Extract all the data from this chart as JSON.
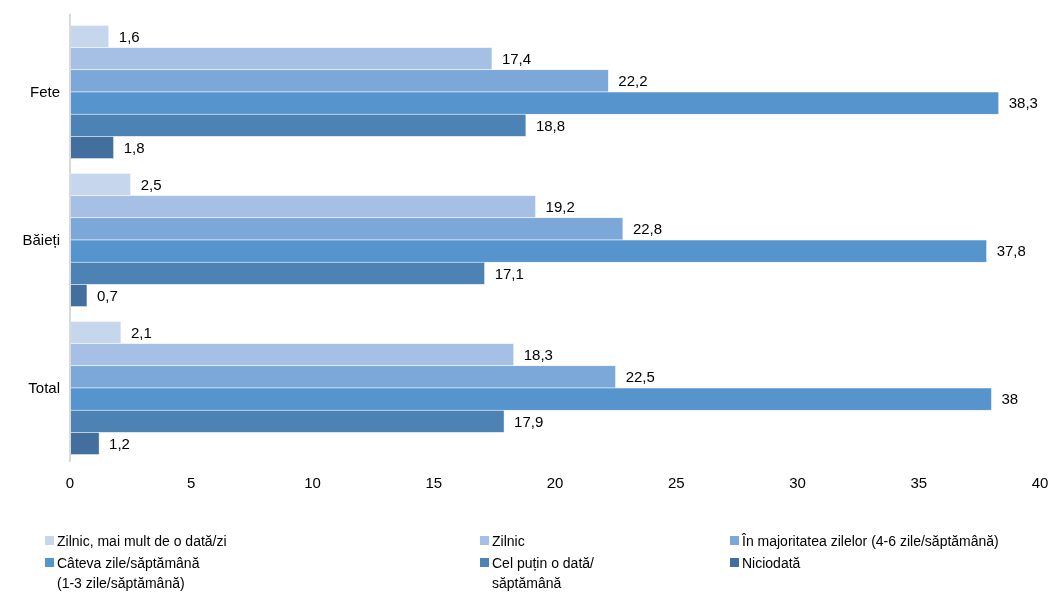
{
  "chart_data": {
    "type": "bar",
    "orientation": "horizontal",
    "categories": [
      "Fete",
      "Băieți",
      "Total"
    ],
    "series": [
      {
        "name": "Zilnic, mai mult de o dată/zi",
        "color": "#c6d6ec",
        "values": [
          1.6,
          2.5,
          2.1
        ],
        "value_labels": [
          "1,6",
          "2,5",
          "2,1"
        ]
      },
      {
        "name": "Zilnic",
        "color": "#a5c0e4",
        "values": [
          17.4,
          19.2,
          18.3
        ],
        "value_labels": [
          "17,4",
          "19,2",
          "18,3"
        ]
      },
      {
        "name": "În majoritatea zilelor (4-6 zile/săptămână)",
        "color": "#7ba8d9",
        "values": [
          22.2,
          22.8,
          22.5
        ],
        "value_labels": [
          "22,2",
          "22,8",
          "22,5"
        ]
      },
      {
        "name": "Câteva zile/săptămână (1-3 zile/săptămână)",
        "color": "#5594cd",
        "values": [
          38.3,
          37.8,
          38
        ],
        "value_labels": [
          "38,3",
          "37,8",
          "38"
        ]
      },
      {
        "name": "Cel puțin o dată/ săptămână",
        "color": "#4d82b5",
        "values": [
          18.8,
          17.1,
          17.9
        ],
        "value_labels": [
          "18,8",
          "17,1",
          "17,9"
        ]
      },
      {
        "name": "Niciodată",
        "color": "#426f9d",
        "values": [
          1.8,
          0.7,
          1.2
        ],
        "value_labels": [
          "1,8",
          "0,7",
          "1,2"
        ]
      }
    ],
    "xlim": [
      0,
      40
    ],
    "xticks": [
      0,
      5,
      10,
      15,
      20,
      25,
      30,
      35,
      40
    ],
    "grid": false,
    "legend": "bottom"
  }
}
